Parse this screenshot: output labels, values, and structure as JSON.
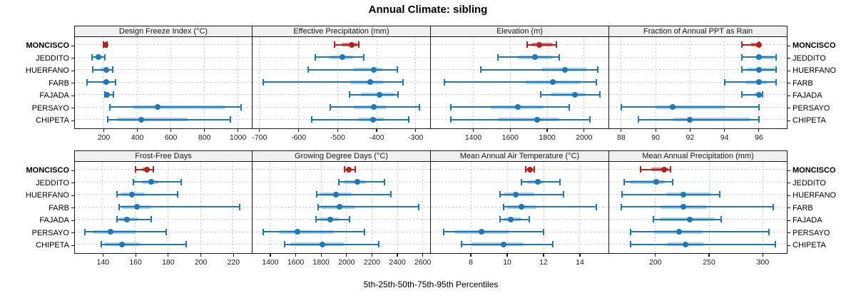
{
  "title": "Annual Climate: sibling",
  "caption": "5th-25th-50th-75th-95th Percentiles",
  "stations": [
    "MONCISCO",
    "JEDDITO",
    "HUERFANO",
    "FARB",
    "FAJADA",
    "PERSAYO",
    "CHIPETA"
  ],
  "highlight_station": "MONCISCO",
  "percentiles": [
    "5th",
    "25th",
    "50th",
    "75th",
    "95th"
  ],
  "colors": {
    "primary": "#1f77b4",
    "primary_light": "#a8cee4",
    "highlight": "#b22222",
    "highlight_light": "#d4867e",
    "strip_bg": "#f0f0f0",
    "grid": "#c9c9c9",
    "border": "#1a1a1a"
  },
  "chart_data": [
    {
      "type": "dot-interval",
      "title": "Design Freeze Index (°C)",
      "xlim": [
        30,
        1080
      ],
      "ticks": [
        200,
        400,
        600,
        800,
        1000
      ],
      "series": [
        {
          "name": "MONCISCO",
          "values": [
            201,
            205,
            211,
            217,
            222
          ]
        },
        {
          "name": "JEDDITO",
          "values": [
            133,
            150,
            172,
            190,
            210
          ]
        },
        {
          "name": "HUERFANO",
          "values": [
            135,
            180,
            218,
            230,
            255
          ]
        },
        {
          "name": "FARB",
          "values": [
            101,
            190,
            218,
            235,
            272
          ]
        },
        {
          "name": "FAJADA",
          "values": [
            207,
            212,
            222,
            235,
            258
          ]
        },
        {
          "name": "PERSAYO",
          "values": [
            240,
            373,
            525,
            928,
            1020
          ]
        },
        {
          "name": "CHIPETA",
          "values": [
            225,
            277,
            425,
            700,
            955
          ]
        }
      ]
    },
    {
      "type": "dot-interval",
      "title": "Effective Precipitation (mm)",
      "xlim": [
        -718,
        -264
      ],
      "ticks": [
        -700,
        -600,
        -500,
        -400,
        -300
      ],
      "series": [
        {
          "name": "MONCISCO",
          "values": [
            -508,
            -490,
            -464,
            -450,
            -445
          ]
        },
        {
          "name": "JEDDITO",
          "values": [
            -558,
            -523,
            -488,
            -460,
            -433
          ]
        },
        {
          "name": "HUERFANO",
          "values": [
            -576,
            -460,
            -407,
            -385,
            -347
          ]
        },
        {
          "name": "FARB",
          "values": [
            -690,
            -468,
            -417,
            -381,
            -333
          ]
        },
        {
          "name": "FAJADA",
          "values": [
            -470,
            -440,
            -393,
            -355,
            -345
          ]
        },
        {
          "name": "PERSAYO",
          "values": [
            -518,
            -458,
            -407,
            -374,
            -290
          ]
        },
        {
          "name": "CHIPETA",
          "values": [
            -567,
            -447,
            -409,
            -380,
            -318
          ]
        }
      ]
    },
    {
      "type": "dot-interval",
      "title": "Elevation (m)",
      "xlim": [
        1170,
        2130
      ],
      "ticks": [
        1400,
        1600,
        1800,
        2000
      ],
      "series": [
        {
          "name": "MONCISCO",
          "values": [
            1692,
            1713,
            1756,
            1830,
            1849
          ]
        },
        {
          "name": "JEDDITO",
          "values": [
            1535,
            1640,
            1733,
            1830,
            1866
          ]
        },
        {
          "name": "HUERFANO",
          "values": [
            1440,
            1770,
            1895,
            2015,
            2075
          ]
        },
        {
          "name": "FARB",
          "values": [
            1245,
            1685,
            1830,
            1980,
            2065
          ]
        },
        {
          "name": "FAJADA",
          "values": [
            1765,
            1820,
            1950,
            2010,
            2085
          ]
        },
        {
          "name": "PERSAYO",
          "values": [
            1280,
            1490,
            1640,
            1780,
            1920
          ]
        },
        {
          "name": "CHIPETA",
          "values": [
            1278,
            1532,
            1746,
            1866,
            2031
          ]
        }
      ]
    },
    {
      "type": "dot-interval",
      "title": "Fraction of Annual PPT as Rain",
      "xlim": [
        87.3,
        97.6
      ],
      "ticks": [
        88,
        90,
        92,
        94,
        96
      ],
      "series": [
        {
          "name": "MONCISCO",
          "values": [
            95,
            95.5,
            96,
            96,
            96
          ]
        },
        {
          "name": "JEDDITO",
          "values": [
            95,
            95.8,
            96,
            96.9,
            97
          ]
        },
        {
          "name": "HUERFANO",
          "values": [
            95,
            95.3,
            96,
            96.9,
            97
          ]
        },
        {
          "name": "FARB",
          "values": [
            94,
            95.2,
            96,
            96.5,
            97
          ]
        },
        {
          "name": "FAJADA",
          "values": [
            95,
            95.7,
            96,
            96.1,
            96.2
          ]
        },
        {
          "name": "PERSAYO",
          "values": [
            88,
            90,
            91,
            94,
            96
          ]
        },
        {
          "name": "CHIPETA",
          "values": [
            89,
            91,
            92,
            95.5,
            96
          ]
        }
      ]
    },
    {
      "type": "dot-interval",
      "title": "Frost-Free Days",
      "xlim": [
        123,
        231
      ],
      "ticks": [
        140,
        160,
        180,
        200,
        220
      ],
      "series": [
        {
          "name": "MONCISCO",
          "values": [
            160,
            164,
            167,
            169,
            171
          ]
        },
        {
          "name": "JEDDITO",
          "values": [
            159,
            164,
            170,
            174,
            188
          ]
        },
        {
          "name": "HUERFANO",
          "values": [
            149,
            151,
            158,
            166,
            186
          ]
        },
        {
          "name": "FARB",
          "values": [
            150,
            152,
            161,
            170,
            224
          ]
        },
        {
          "name": "FAJADA",
          "values": [
            149,
            150,
            155,
            162,
            170
          ]
        },
        {
          "name": "PERSAYO",
          "values": [
            129,
            134,
            145,
            160,
            179
          ]
        },
        {
          "name": "CHIPETA",
          "values": [
            139,
            141,
            152,
            163,
            191
          ]
        }
      ]
    },
    {
      "type": "dot-interval",
      "title": "Growing Degree Days (°C)",
      "xlim": [
        1260,
        2655
      ],
      "ticks": [
        1400,
        1600,
        1800,
        2000,
        2200,
        2400,
        2600
      ],
      "series": [
        {
          "name": "MONCISCO",
          "values": [
            1983,
            2000,
            2020,
            2042,
            2066
          ]
        },
        {
          "name": "JEDDITO",
          "values": [
            1940,
            1978,
            2085,
            2152,
            2299
          ]
        },
        {
          "name": "HUERFANO",
          "values": [
            1768,
            1790,
            1917,
            2042,
            2349
          ]
        },
        {
          "name": "FARB",
          "values": [
            1778,
            1800,
            1944,
            2070,
            2567
          ]
        },
        {
          "name": "FAJADA",
          "values": [
            1757,
            1781,
            1874,
            1940,
            2023
          ]
        },
        {
          "name": "PERSAYO",
          "values": [
            1343,
            1465,
            1615,
            1900,
            2142
          ]
        },
        {
          "name": "CHIPETA",
          "values": [
            1515,
            1558,
            1810,
            1977,
            2252
          ]
        }
      ]
    },
    {
      "type": "dot-interval",
      "title": "Mean Annual Air Temperature (°C)",
      "xlim": [
        5.8,
        15.55
      ],
      "ticks": [
        8,
        10,
        12,
        14
      ],
      "series": [
        {
          "name": "MONCISCO",
          "values": [
            11.0,
            11.1,
            11.25,
            11.4,
            11.5
          ]
        },
        {
          "name": "JEDDITO",
          "values": [
            10.8,
            11.1,
            11.7,
            12.0,
            12.9
          ]
        },
        {
          "name": "HUERFANO",
          "values": [
            9.6,
            9.8,
            10.45,
            11.5,
            13.1
          ]
        },
        {
          "name": "FARB",
          "values": [
            9.8,
            10.0,
            10.8,
            11.6,
            14.9
          ]
        },
        {
          "name": "FAJADA",
          "values": [
            9.6,
            9.8,
            10.2,
            10.8,
            11.2
          ]
        },
        {
          "name": "PERSAYO",
          "values": [
            6.5,
            7.1,
            8.6,
            10.1,
            12.0
          ]
        },
        {
          "name": "CHIPETA",
          "values": [
            7.5,
            8.0,
            9.8,
            10.9,
            12.5
          ]
        }
      ]
    },
    {
      "type": "dot-interval",
      "title": "Mean Annual Precipitation (mm)",
      "xlim": [
        157,
        322
      ],
      "ticks": [
        200,
        250,
        300
      ],
      "series": [
        {
          "name": "MONCISCO",
          "values": [
            186,
            196,
            208,
            212,
            214
          ]
        },
        {
          "name": "JEDDITO",
          "values": [
            171,
            176,
            201,
            209,
            216
          ]
        },
        {
          "name": "HUERFANO",
          "values": [
            169,
            210,
            226,
            252,
            260
          ]
        },
        {
          "name": "FARB",
          "values": [
            168,
            205,
            226,
            248,
            310
          ]
        },
        {
          "name": "FAJADA",
          "values": [
            198,
            204,
            232,
            255,
            261
          ]
        },
        {
          "name": "PERSAYO",
          "values": [
            177,
            199,
            222,
            244,
            306
          ]
        },
        {
          "name": "CHIPETA",
          "values": [
            177,
            211,
            228,
            245,
            312
          ]
        }
      ]
    }
  ]
}
